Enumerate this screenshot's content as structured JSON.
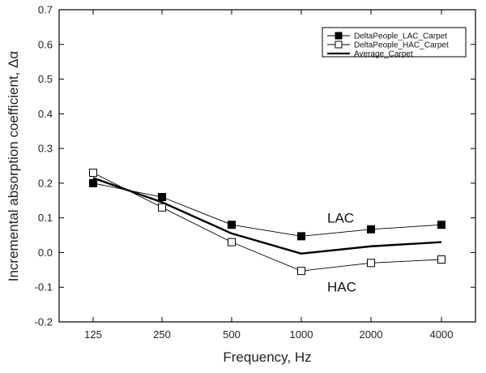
{
  "chart_data": {
    "type": "line",
    "xlabel": "Frequency, Hz",
    "ylabel": "Incremental absorption coefficient, Δα",
    "categories": [
      "125",
      "250",
      "500",
      "1000",
      "2000",
      "4000"
    ],
    "ylim": [
      -0.2,
      0.7
    ],
    "yticks": [
      "-0.2",
      "-0.1",
      "0.0",
      "0.1",
      "0.2",
      "0.3",
      "0.4",
      "0.5",
      "0.6",
      "0.7"
    ],
    "grid": false,
    "legend_position": "top-right",
    "series": [
      {
        "name": "DeltaPeople_LAC_Carpet",
        "values": [
          0.2,
          0.16,
          0.08,
          0.047,
          0.067,
          0.08
        ],
        "marker": "filled-square",
        "line": "thin"
      },
      {
        "name": "DeltaPeople_HAC_Carpet",
        "values": [
          0.23,
          0.13,
          0.03,
          -0.053,
          -0.03,
          -0.02
        ],
        "marker": "open-square",
        "line": "thin"
      },
      {
        "name": "Average_Carpet",
        "values": [
          0.215,
          0.145,
          0.055,
          -0.003,
          0.018,
          0.03
        ],
        "marker": "none",
        "line": "thick"
      }
    ],
    "annotations": [
      {
        "text": "LAC",
        "x": "1000",
        "y": 0.1
      },
      {
        "text": "HAC",
        "x": "1000",
        "y": -0.098
      }
    ],
    "colors": {
      "line": "#000000",
      "axis": "#000000"
    }
  }
}
